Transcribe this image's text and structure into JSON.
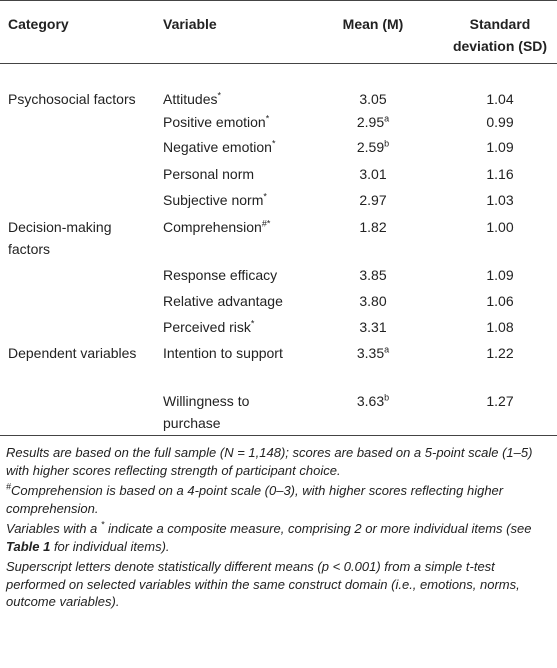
{
  "header": [
    "Category",
    "Variable",
    "Mean (M)",
    "Standard deviation (SD)"
  ],
  "rows": [
    {
      "category": "Psychosocial factors",
      "variable": "Attitudes",
      "variable_sup": "*",
      "mean": "3.05",
      "sd": "1.04"
    },
    {
      "variable": "Positive emotion",
      "variable_sup": "*",
      "mean": "2.95",
      "mean_sup": "a",
      "sd": "0.99"
    },
    {
      "variable": "Negative emotion",
      "variable_sup": "*",
      "mean": "2.59",
      "mean_sup": "b",
      "sd": "1.09"
    },
    {
      "variable": "Personal norm",
      "mean": "3.01",
      "sd": "1.16"
    },
    {
      "variable": "Subjective norm",
      "variable_sup": "*",
      "mean": "2.97",
      "sd": "1.03"
    },
    {
      "category": "Decision-making factors",
      "variable": "Comprehension",
      "variable_sup": "#*",
      "mean": "1.82",
      "sd": "1.00"
    },
    {
      "variable": "Response efficacy",
      "mean": "3.85",
      "sd": "1.09"
    },
    {
      "variable": "Relative advantage",
      "mean": "3.80",
      "sd": "1.06"
    },
    {
      "variable": "Perceived risk",
      "variable_sup": "*",
      "mean": "3.31",
      "sd": "1.08"
    },
    {
      "category": "Dependent variables",
      "variable": "Intention to support",
      "mean": "3.35",
      "mean_sup": "a",
      "sd": "1.22"
    },
    {
      "variable": "Willingness to purchase",
      "mean": "3.63",
      "mean_sup": "b",
      "sd": "1.27"
    }
  ],
  "notes": [
    [
      {
        "text": "Results are based on the full sample (N = 1,148); scores are based on a 5-point scale (1–5) with higher scores reflecting strength of participant choice."
      }
    ],
    [
      {
        "text": "#",
        "format": "sup"
      },
      {
        "text": "Comprehension is based on a 4-point scale (0–3), with higher scores reflecting higher comprehension."
      }
    ],
    [
      {
        "text": "Variables with a "
      },
      {
        "text": "*",
        "format": "sup"
      },
      {
        "text": " indicate a composite measure, comprising 2 or more individual items (see "
      },
      {
        "text": "Table 1",
        "format": "bold"
      },
      {
        "text": " for individual items)."
      }
    ],
    [
      {
        "text": "Superscript letters denote statistically different means (p < 0.001) from a simple t-test performed on selected variables within the same construct domain (i.e., emotions, norms, outcome variables)."
      }
    ]
  ]
}
